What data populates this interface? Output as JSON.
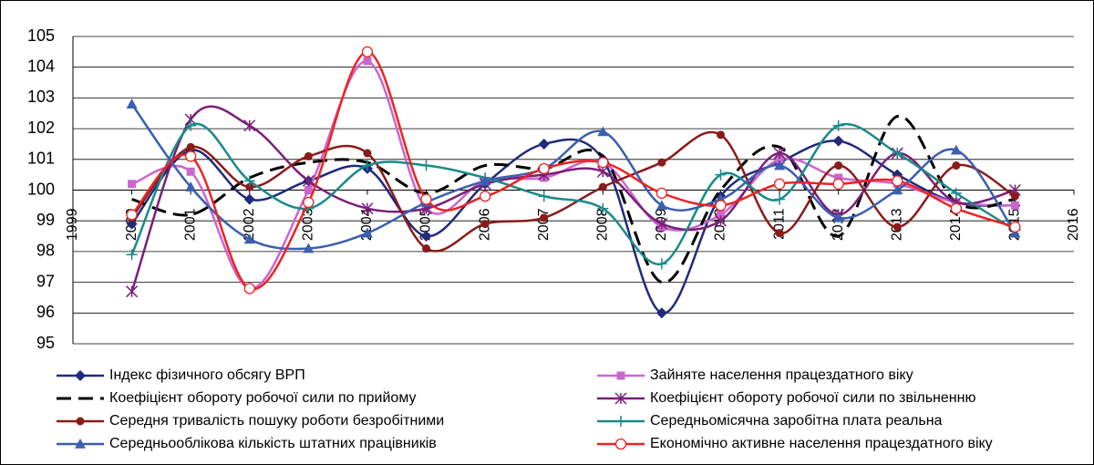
{
  "chart_data": {
    "type": "line",
    "x": [
      2000,
      2001,
      2002,
      2003,
      2004,
      2005,
      2006,
      2007,
      2008,
      2009,
      2010,
      2011,
      2012,
      2013,
      2014,
      2015
    ],
    "xlim": [
      1999,
      2016
    ],
    "xticks": [
      1999,
      2000,
      2001,
      2002,
      2003,
      2004,
      2005,
      2006,
      2007,
      2008,
      2009,
      2010,
      2011,
      2012,
      2013,
      2014,
      2015,
      2016
    ],
    "ylim": [
      95,
      105
    ],
    "yticks": [
      95,
      96,
      97,
      98,
      99,
      100,
      101,
      102,
      103,
      104,
      105
    ],
    "grid": true,
    "smooth": true,
    "legend": "bottom",
    "series": [
      {
        "name": "Індекс фізичного обсягу ВРП",
        "color": "#1f2a7a",
        "marker": "diamond",
        "line_style": "solid",
        "values": [
          98.9,
          101.3,
          99.7,
          100.3,
          100.7,
          98.5,
          100.2,
          101.5,
          101.0,
          96.0,
          99.8,
          100.9,
          101.6,
          100.5,
          99.6,
          99.5
        ]
      },
      {
        "name": "Зайняте населення працездатного віку",
        "color": "#cc66cc",
        "marker": "square",
        "line_style": "solid",
        "values": [
          100.2,
          100.6,
          96.8,
          100.0,
          104.2,
          99.4,
          100.3,
          100.4,
          100.9,
          98.8,
          99.2,
          101.0,
          100.4,
          100.2,
          99.6,
          99.5
        ]
      },
      {
        "name": "Коефіцієнт обороту робочої сили по прийому",
        "color": "#000000",
        "marker": "none",
        "line_style": "dashed",
        "values": [
          99.7,
          99.2,
          100.4,
          100.9,
          100.9,
          99.9,
          100.8,
          100.7,
          101.1,
          97.0,
          100.0,
          101.4,
          98.5,
          102.4,
          99.6,
          99.7
        ]
      },
      {
        "name": " Коефіцієнт обороту робочої сили по звільненню",
        "color": "#7a1f7a",
        "marker": "star",
        "line_style": "solid",
        "values": [
          96.7,
          102.3,
          102.1,
          100.3,
          99.4,
          99.4,
          100.2,
          100.5,
          100.6,
          98.9,
          99.0,
          101.2,
          99.2,
          101.2,
          99.6,
          100.0
        ]
      },
      {
        "name": "Середня тривалість пошуку роботи безробітними",
        "color": "#8b1a1a",
        "marker": "circle",
        "line_style": "solid",
        "values": [
          99.1,
          101.4,
          100.1,
          101.1,
          101.2,
          98.1,
          98.9,
          99.1,
          100.1,
          100.9,
          101.8,
          98.6,
          100.8,
          98.8,
          100.8,
          99.8
        ]
      },
      {
        "name": "Середньомісячна заробітна плата  реальна",
        "color": "#1a8a8a",
        "marker": "plus",
        "line_style": "solid",
        "values": [
          97.9,
          102.1,
          100.3,
          99.4,
          100.8,
          100.8,
          100.4,
          99.8,
          99.4,
          97.6,
          100.5,
          99.7,
          102.1,
          101.2,
          99.9,
          98.7
        ]
      },
      {
        "name": "Середньооблікова кількість штатних працівників",
        "color": "#3a5fb0",
        "marker": "triangle",
        "line_style": "solid",
        "values": [
          102.8,
          100.1,
          98.4,
          98.1,
          98.6,
          99.6,
          100.3,
          100.7,
          101.9,
          99.5,
          99.7,
          100.8,
          99.1,
          100.0,
          101.3,
          98.6
        ]
      },
      {
        "name": "Економічно активне населення працездатного віку",
        "color": "#ee2222",
        "marker": "open-circle",
        "line_style": "solid",
        "values": [
          99.2,
          101.1,
          96.8,
          99.6,
          104.5,
          99.7,
          99.8,
          100.7,
          100.9,
          99.9,
          99.5,
          100.2,
          100.2,
          100.3,
          99.4,
          98.8
        ]
      }
    ]
  }
}
